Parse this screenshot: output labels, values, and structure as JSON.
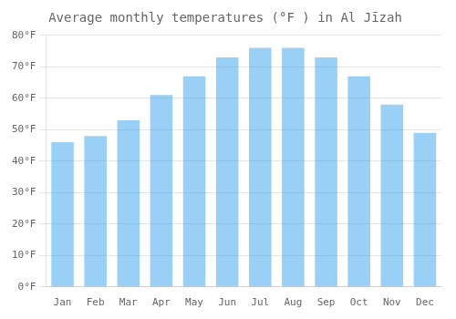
{
  "chart_data": {
    "type": "bar",
    "title": "Average monthly temperatures (°F ) in Al Jīzah",
    "categories": [
      "Jan",
      "Feb",
      "Mar",
      "Apr",
      "May",
      "Jun",
      "Jul",
      "Aug",
      "Sep",
      "Oct",
      "Nov",
      "Dec"
    ],
    "values": [
      46,
      48,
      53,
      61,
      67,
      73,
      76,
      76,
      73,
      67,
      58,
      49
    ],
    "ylim": [
      0,
      80
    ],
    "yticks": [
      {
        "value": 0,
        "label": "0°F"
      },
      {
        "value": 10,
        "label": "10°F"
      },
      {
        "value": 20,
        "label": "20°F"
      },
      {
        "value": 30,
        "label": "30°F"
      },
      {
        "value": 40,
        "label": "40°F"
      },
      {
        "value": 50,
        "label": "50°F"
      },
      {
        "value": 60,
        "label": "60°F"
      },
      {
        "value": 70,
        "label": "70°F"
      },
      {
        "value": 80,
        "label": "80°F"
      }
    ],
    "grid": true
  }
}
